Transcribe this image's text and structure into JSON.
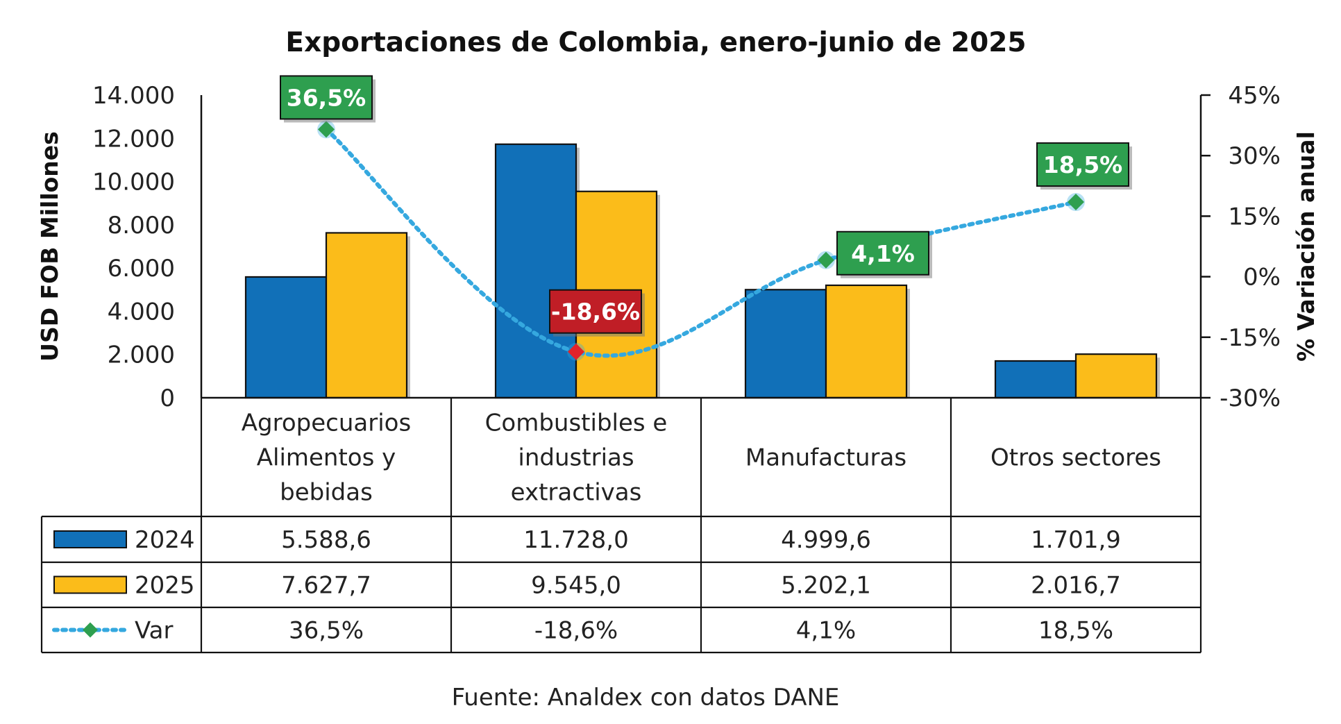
{
  "chart_data": {
    "type": "bar",
    "title": "Exportaciones de Colombia, enero-junio de 2025",
    "ylabel": "USD FOB Millones",
    "y2label": "% Variación anual",
    "ylim": [
      0,
      14000
    ],
    "y2lim": [
      -30,
      45
    ],
    "yticks": [
      "0",
      "2.000",
      "4.000",
      "6.000",
      "8.000",
      "10.000",
      "12.000",
      "14.000"
    ],
    "y2ticks": [
      "-30%",
      "-15%",
      "0%",
      "15%",
      "30%",
      "45%"
    ],
    "categories": [
      [
        "Agropecuarios",
        "Alimentos y",
        "bebidas"
      ],
      [
        "Combustibles e",
        "industrias",
        "extractivas"
      ],
      [
        "Manufacturas"
      ],
      [
        "Otros sectores"
      ]
    ],
    "series": [
      {
        "name": "2024",
        "kind": "bar",
        "color": "#1170B8",
        "values": [
          5588.6,
          11728.0,
          4999.6,
          1701.9
        ],
        "table_values": [
          "5.588,6",
          "11.728,0",
          "4.999,6",
          "1.701,9"
        ]
      },
      {
        "name": "2025",
        "kind": "bar",
        "color": "#FBBC1A",
        "values": [
          7627.7,
          9545.0,
          5202.1,
          2016.7
        ],
        "table_values": [
          "7.627,7",
          "9.545,0",
          "5.202,1",
          "2.016,7"
        ]
      },
      {
        "name": "Var",
        "kind": "line",
        "axis": "secondary",
        "color": "#35A8DF",
        "values": [
          36.5,
          -18.6,
          4.1,
          18.5
        ],
        "table_values": [
          "36,5%",
          "-18,6%",
          "4,1%",
          "18,5%"
        ],
        "data_labels": [
          "36,5%",
          "-18,6%",
          "4,1%",
          "18,5%"
        ]
      }
    ],
    "label_colors": {
      "positive": "#2E9F4F",
      "negative": "#C01E26"
    },
    "marker_colors": {
      "positive": "#2E9F4F",
      "negative": "#E2232A"
    },
    "source": "Fuente: Analdex con datos DANE"
  }
}
